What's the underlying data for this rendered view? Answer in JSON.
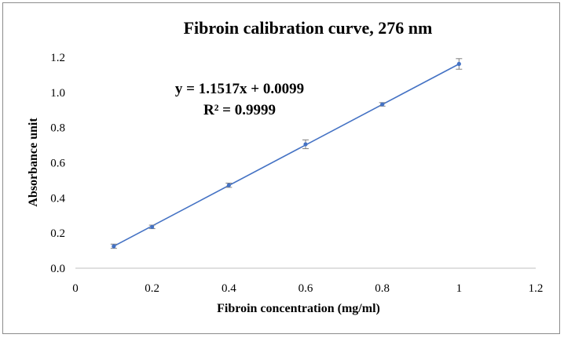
{
  "chart_data": {
    "type": "scatter",
    "title": "Fibroin calibration curve, 276 nm",
    "xlabel": "Fibroin concentration (mg/ml)",
    "ylabel": "Absorbance unit",
    "xlim": [
      0,
      1.2
    ],
    "ylim": [
      0,
      1.2
    ],
    "x_ticks": [
      0,
      0.2,
      0.4,
      0.6,
      0.8,
      1,
      1.2
    ],
    "x_tick_labels": [
      "0",
      "0.2",
      "0.4",
      "0.6",
      "0.8",
      "1",
      "1.2"
    ],
    "y_ticks": [
      0,
      0.2,
      0.4,
      0.6,
      0.8,
      1.0,
      1.2
    ],
    "y_tick_labels": [
      "0.0",
      "0.2",
      "0.4",
      "0.6",
      "0.8",
      "1.0",
      "1.2"
    ],
    "grid": false,
    "legend": "none",
    "series": [
      {
        "x": [
          0.1,
          0.2,
          0.4,
          0.6,
          0.8,
          1.0
        ],
        "y": [
          0.125,
          0.235,
          0.472,
          0.705,
          0.932,
          1.162
        ],
        "y_error": [
          0.012,
          0.01,
          0.012,
          0.025,
          0.01,
          0.03
        ],
        "color": "#4472c4"
      }
    ],
    "trendline": {
      "type": "linear",
      "slope": 1.1517,
      "intercept": 0.0099,
      "x_range": [
        0.1,
        1.0
      ],
      "color": "#4472c4",
      "equation_label": "y = 1.1517x + 0.0099",
      "r2_label": "R² = 0.9999"
    },
    "colors": {
      "axis": "#bfbfbf",
      "text": "#000000",
      "error_bar": "#7f7f7f"
    }
  }
}
